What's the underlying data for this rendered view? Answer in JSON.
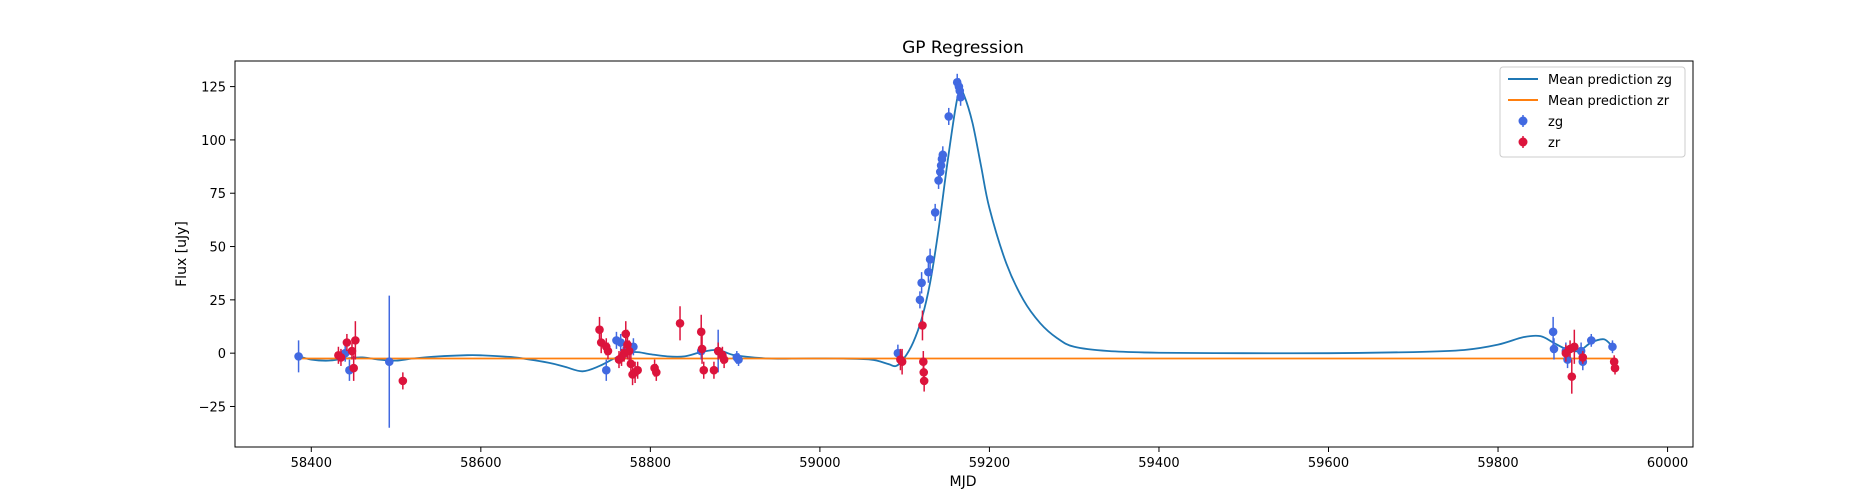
{
  "chart_data": {
    "type": "scatter",
    "title": "GP Regression",
    "xlabel": "MJD",
    "ylabel": "Flux [uJy]",
    "xlim": [
      58310,
      60030
    ],
    "ylim": [
      -44,
      137
    ],
    "xticks": [
      58400,
      58600,
      58800,
      59000,
      59200,
      59400,
      59600,
      59800,
      60000
    ],
    "yticks": [
      -25,
      0,
      25,
      50,
      75,
      100,
      125
    ],
    "grid": false,
    "legend_position": "top-right",
    "colors": {
      "mean_zg": "#1f77b4",
      "mean_zr": "#ff7f0e",
      "zg": "#4169e1",
      "zr": "#dc143c"
    },
    "series": [
      {
        "name": "Mean prediction zg",
        "kind": "line",
        "x": [
          58385,
          58400,
          58420,
          58440,
          58460,
          58480,
          58500,
          58520,
          58550,
          58580,
          58600,
          58640,
          58680,
          58700,
          58720,
          58740,
          58760,
          58780,
          58800,
          58820,
          58840,
          58860,
          58880,
          58900,
          58940,
          58980,
          59020,
          59060,
          59080,
          59090,
          59100,
          59110,
          59120,
          59130,
          59140,
          59150,
          59160,
          59165,
          59170,
          59180,
          59190,
          59200,
          59220,
          59240,
          59260,
          59280,
          59300,
          59340,
          59400,
          59500,
          59600,
          59700,
          59760,
          59800,
          59830,
          59850,
          59865,
          59880,
          59895,
          59910,
          59925,
          59935
        ],
        "y": [
          -1.5,
          -3,
          -3.5,
          -2.5,
          -2,
          -3,
          -3.5,
          -2.5,
          -1.5,
          -1,
          -1,
          -2,
          -4.5,
          -6.5,
          -8.5,
          -6,
          -2,
          0.5,
          -0.5,
          -1.5,
          -1.5,
          0.5,
          1.5,
          -1,
          -2.5,
          -2.5,
          -2.5,
          -3,
          -5,
          -6,
          -2,
          5,
          16,
          33,
          58,
          88,
          115,
          123,
          121,
          108,
          88,
          68,
          42,
          25,
          14,
          7,
          3,
          1,
          0.2,
          0,
          0,
          0.5,
          1.5,
          4,
          7.5,
          8,
          5,
          2,
          1,
          5,
          6.5,
          3
        ]
      },
      {
        "name": "Mean prediction zr",
        "kind": "line",
        "x": [
          58385,
          59935
        ],
        "y": [
          -2.5,
          -2.5
        ]
      },
      {
        "name": "zg",
        "kind": "errorbar",
        "points": [
          [
            58385,
            -1.5,
            7.5
          ],
          [
            58440,
            0,
            4
          ],
          [
            58445,
            -8,
            5
          ],
          [
            58492,
            -4,
            31
          ],
          [
            58748,
            -8,
            5
          ],
          [
            58760,
            6,
            4
          ],
          [
            58765,
            5,
            4
          ],
          [
            58772,
            2,
            4
          ],
          [
            58780,
            3,
            4
          ],
          [
            58860,
            1,
            4
          ],
          [
            58880,
            1,
            10
          ],
          [
            58902,
            -2,
            3
          ],
          [
            58904,
            -3,
            3
          ],
          [
            59092,
            0,
            4
          ],
          [
            59118,
            25,
            4
          ],
          [
            59120,
            33,
            5
          ],
          [
            59128,
            38,
            5
          ],
          [
            59130,
            44,
            5
          ],
          [
            59136,
            66,
            4
          ],
          [
            59140,
            81,
            4
          ],
          [
            59142,
            85,
            4
          ],
          [
            59143,
            88,
            4
          ],
          [
            59144,
            91,
            4
          ],
          [
            59145,
            93,
            4
          ],
          [
            59152,
            111,
            4
          ],
          [
            59162,
            127,
            4
          ],
          [
            59164,
            125,
            4
          ],
          [
            59165,
            123,
            4
          ],
          [
            59166,
            120,
            4
          ],
          [
            59865,
            10,
            7
          ],
          [
            59866,
            2,
            5
          ],
          [
            59880,
            1,
            4
          ],
          [
            59882,
            -3,
            4
          ],
          [
            59898,
            1,
            4
          ],
          [
            59900,
            -4,
            4
          ],
          [
            59910,
            6,
            3
          ],
          [
            59935,
            3,
            3
          ]
        ]
      },
      {
        "name": "zr",
        "kind": "errorbar",
        "points": [
          [
            58432,
            -1,
            4
          ],
          [
            58435,
            -2,
            4
          ],
          [
            58442,
            5,
            4
          ],
          [
            58448,
            1,
            4
          ],
          [
            58450,
            -7,
            6
          ],
          [
            58452,
            6,
            9
          ],
          [
            58508,
            -13,
            4
          ],
          [
            58740,
            11,
            6
          ],
          [
            58742,
            5,
            5
          ],
          [
            58748,
            3,
            4
          ],
          [
            58750,
            1,
            4
          ],
          [
            58763,
            -3,
            4
          ],
          [
            58766,
            -2,
            4
          ],
          [
            58769,
            0,
            4
          ],
          [
            58771,
            9,
            6
          ],
          [
            58773,
            4,
            7
          ],
          [
            58775,
            1,
            5
          ],
          [
            58777,
            -5,
            6
          ],
          [
            58779,
            -10,
            5
          ],
          [
            58782,
            -9,
            5
          ],
          [
            58785,
            -8,
            4
          ],
          [
            58805,
            -7,
            4
          ],
          [
            58807,
            -9,
            4
          ],
          [
            58835,
            14,
            8
          ],
          [
            58860,
            10,
            8
          ],
          [
            58861,
            2,
            7
          ],
          [
            58863,
            -8,
            4
          ],
          [
            58875,
            -8,
            4
          ],
          [
            58880,
            1,
            4
          ],
          [
            58885,
            -1,
            4
          ],
          [
            58887,
            -3,
            4
          ],
          [
            59095,
            -3,
            5
          ],
          [
            59097,
            -4,
            6
          ],
          [
            59121,
            13,
            7
          ],
          [
            59122,
            -4,
            5
          ],
          [
            59122.5,
            -9,
            5
          ],
          [
            59123,
            -13,
            5
          ],
          [
            59880,
            0,
            4
          ],
          [
            59885,
            2,
            4
          ],
          [
            59887,
            -11,
            8
          ],
          [
            59890,
            3,
            8
          ],
          [
            59900,
            -2,
            3
          ],
          [
            59937,
            -4,
            3
          ],
          [
            59938,
            -7,
            3
          ]
        ]
      }
    ]
  }
}
